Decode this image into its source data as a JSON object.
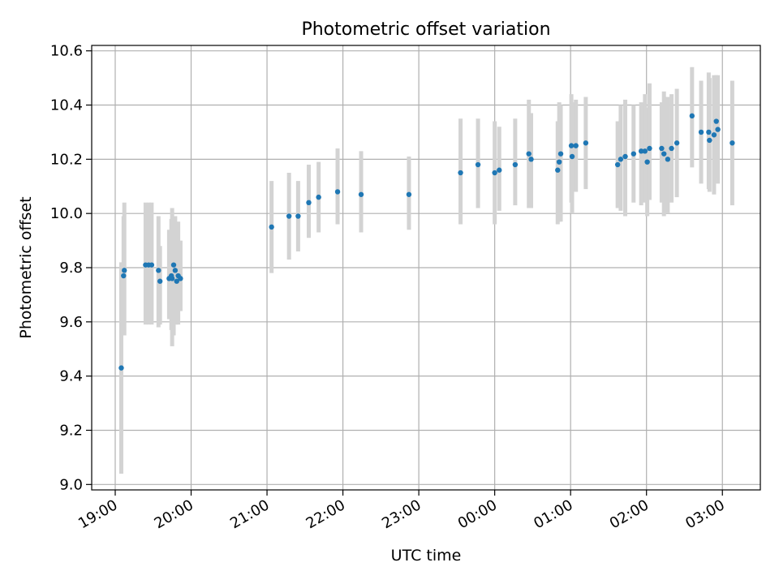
{
  "chart_data": {
    "type": "scatter",
    "title": "Photometric offset variation",
    "xlabel": "UTC time",
    "ylabel": "Photometric offset",
    "x_ticks": [
      "19:00",
      "20:00",
      "21:00",
      "22:00",
      "23:00",
      "00:00",
      "01:00",
      "02:00",
      "03:00"
    ],
    "x_ticks_hours": [
      19,
      20,
      21,
      22,
      23,
      24,
      25,
      26,
      27
    ],
    "xlim_hours": [
      18.69,
      27.5
    ],
    "y_ticks": [
      "9.0",
      "9.2",
      "9.4",
      "9.6",
      "9.8",
      "10.0",
      "10.2",
      "10.4",
      "10.6"
    ],
    "y_tick_values": [
      9.0,
      9.2,
      9.4,
      9.6,
      9.8,
      10.0,
      10.2,
      10.4,
      10.6
    ],
    "ylim": [
      8.98,
      10.62
    ],
    "grid": true,
    "colors": {
      "points": "#1f77b4",
      "errorbars": "#d3d3d3",
      "grid": "#b0b0b0"
    },
    "series": [
      {
        "x_hours": [
          19.08,
          19.11,
          19.12,
          19.4,
          19.44,
          19.48,
          19.57,
          19.59,
          19.71,
          19.74,
          19.75,
          19.77,
          19.79,
          19.81,
          19.83,
          19.86,
          21.06,
          21.29,
          21.41,
          21.55,
          21.68,
          21.93,
          22.24,
          22.87,
          23.55,
          23.78,
          24.0,
          24.06,
          24.27,
          24.45,
          24.48,
          24.83,
          24.85,
          24.87,
          25.01,
          25.02,
          25.07,
          25.2,
          25.62,
          25.66,
          25.72,
          25.83,
          25.93,
          25.98,
          26.01,
          26.04,
          26.2,
          26.23,
          26.28,
          26.33,
          26.4,
          26.6,
          26.72,
          26.82,
          26.83,
          26.89,
          26.92,
          26.94,
          27.13
        ],
        "y": [
          9.43,
          9.77,
          9.79,
          9.81,
          9.81,
          9.81,
          9.79,
          9.75,
          9.76,
          9.77,
          9.76,
          9.81,
          9.79,
          9.75,
          9.77,
          9.76,
          9.95,
          9.99,
          9.99,
          10.04,
          10.06,
          10.08,
          10.07,
          10.07,
          10.15,
          10.18,
          10.15,
          10.16,
          10.18,
          10.22,
          10.2,
          10.16,
          10.19,
          10.22,
          10.25,
          10.21,
          10.25,
          10.26,
          10.18,
          10.2,
          10.21,
          10.22,
          10.23,
          10.23,
          10.19,
          10.24,
          10.24,
          10.22,
          10.2,
          10.24,
          10.26,
          10.36,
          10.3,
          10.3,
          10.27,
          10.29,
          10.34,
          10.31,
          10.26
        ],
        "err_low": [
          9.04,
          9.58,
          9.55,
          9.59,
          9.59,
          9.59,
          9.58,
          9.59,
          9.61,
          9.57,
          9.51,
          9.55,
          9.59,
          9.59,
          9.59,
          9.64,
          9.78,
          9.83,
          9.86,
          9.91,
          9.93,
          9.96,
          9.93,
          9.94,
          9.96,
          10.02,
          9.96,
          10.01,
          10.03,
          10.02,
          10.02,
          9.96,
          9.97,
          9.97,
          10.04,
          10.0,
          10.08,
          10.09,
          10.02,
          10.01,
          9.99,
          10.04,
          10.03,
          10.04,
          9.99,
          10.05,
          10.04,
          9.99,
          10.0,
          10.04,
          10.06,
          10.17,
          10.11,
          10.09,
          10.08,
          10.07,
          10.13,
          10.11,
          10.03
        ],
        "err_high": [
          9.82,
          9.99,
          10.04,
          10.04,
          10.04,
          10.04,
          9.99,
          9.88,
          9.94,
          9.98,
          10.02,
          9.98,
          9.99,
          9.95,
          9.97,
          9.9,
          10.12,
          10.15,
          10.12,
          10.18,
          10.19,
          10.24,
          10.23,
          10.21,
          10.35,
          10.35,
          10.34,
          10.32,
          10.35,
          10.42,
          10.37,
          10.34,
          10.41,
          10.4,
          10.44,
          10.41,
          10.42,
          10.43,
          10.34,
          10.4,
          10.42,
          10.4,
          10.41,
          10.44,
          10.39,
          10.48,
          10.41,
          10.45,
          10.43,
          10.44,
          10.46,
          10.54,
          10.49,
          10.52,
          10.5,
          10.51,
          10.51,
          10.51,
          10.49
        ]
      }
    ]
  }
}
